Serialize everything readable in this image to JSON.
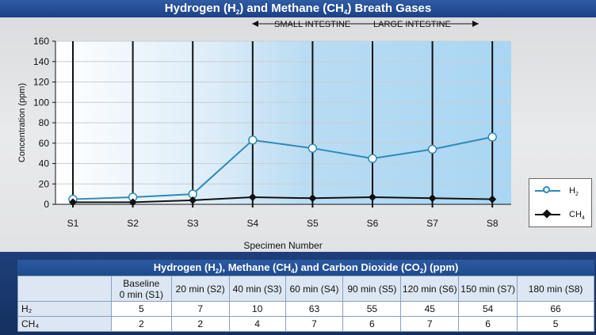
{
  "title": {
    "prefix": "Hydrogen (H",
    "sub1": "2",
    "mid": ") and Methane (CH",
    "sub2": "4",
    "suffix": ") Breath Gases"
  },
  "regions": {
    "small": "SMALL INTESTINE",
    "large": "LARGE INTESTINE"
  },
  "chart_data": {
    "type": "line",
    "categories": [
      "S1",
      "S2",
      "S3",
      "S4",
      "S5",
      "S6",
      "S7",
      "S8"
    ],
    "series": [
      {
        "name": "H2",
        "values": [
          5,
          7,
          10,
          63,
          55,
          45,
          54,
          66
        ],
        "color": "#2e8ab8",
        "marker": "circle"
      },
      {
        "name": "CH4",
        "values": [
          2,
          2,
          4,
          7,
          6,
          7,
          6,
          5
        ],
        "color": "#111111",
        "marker": "diamond"
      }
    ],
    "xlabel": "Specimen Number",
    "ylabel": "Concentration (ppm)",
    "ylim": [
      0,
      160
    ],
    "yticks": [
      0,
      20,
      40,
      60,
      80,
      100,
      120,
      140,
      160
    ],
    "grid": true,
    "legend": "right"
  },
  "legend": {
    "h2": {
      "base": "H",
      "sub": "2"
    },
    "ch4": {
      "base": "CH",
      "sub": "4"
    }
  },
  "table": {
    "title": {
      "prefix": "Hydrogen (H",
      "sub1": "2",
      "mid1": "), Methane (CH",
      "sub2": "4",
      "mid2": ") and Carbon Dioxide (CO",
      "sub3": "2",
      "suffix": ") (ppm)"
    },
    "headers": [
      "Baseline\n0 min (S1)",
      "20 min (S2)",
      "40 min (S3)",
      "60 min (S4)",
      "90 min (S5)",
      "120 min (S6)",
      "150 min (S7)",
      "180 min (S8)"
    ],
    "baseline_line1": "Baseline",
    "baseline_line2": "0 min (S1)",
    "rows": [
      {
        "label": "H₂",
        "values": [
          "5",
          "7",
          "10",
          "63",
          "55",
          "45",
          "54",
          "66"
        ]
      },
      {
        "label": "CH₄",
        "values": [
          "2",
          "2",
          "4",
          "7",
          "6",
          "7",
          "6",
          "5"
        ]
      }
    ]
  },
  "colors": {
    "accent": "#1c4286",
    "h2": "#2e8ab8",
    "ch4": "#111111"
  }
}
